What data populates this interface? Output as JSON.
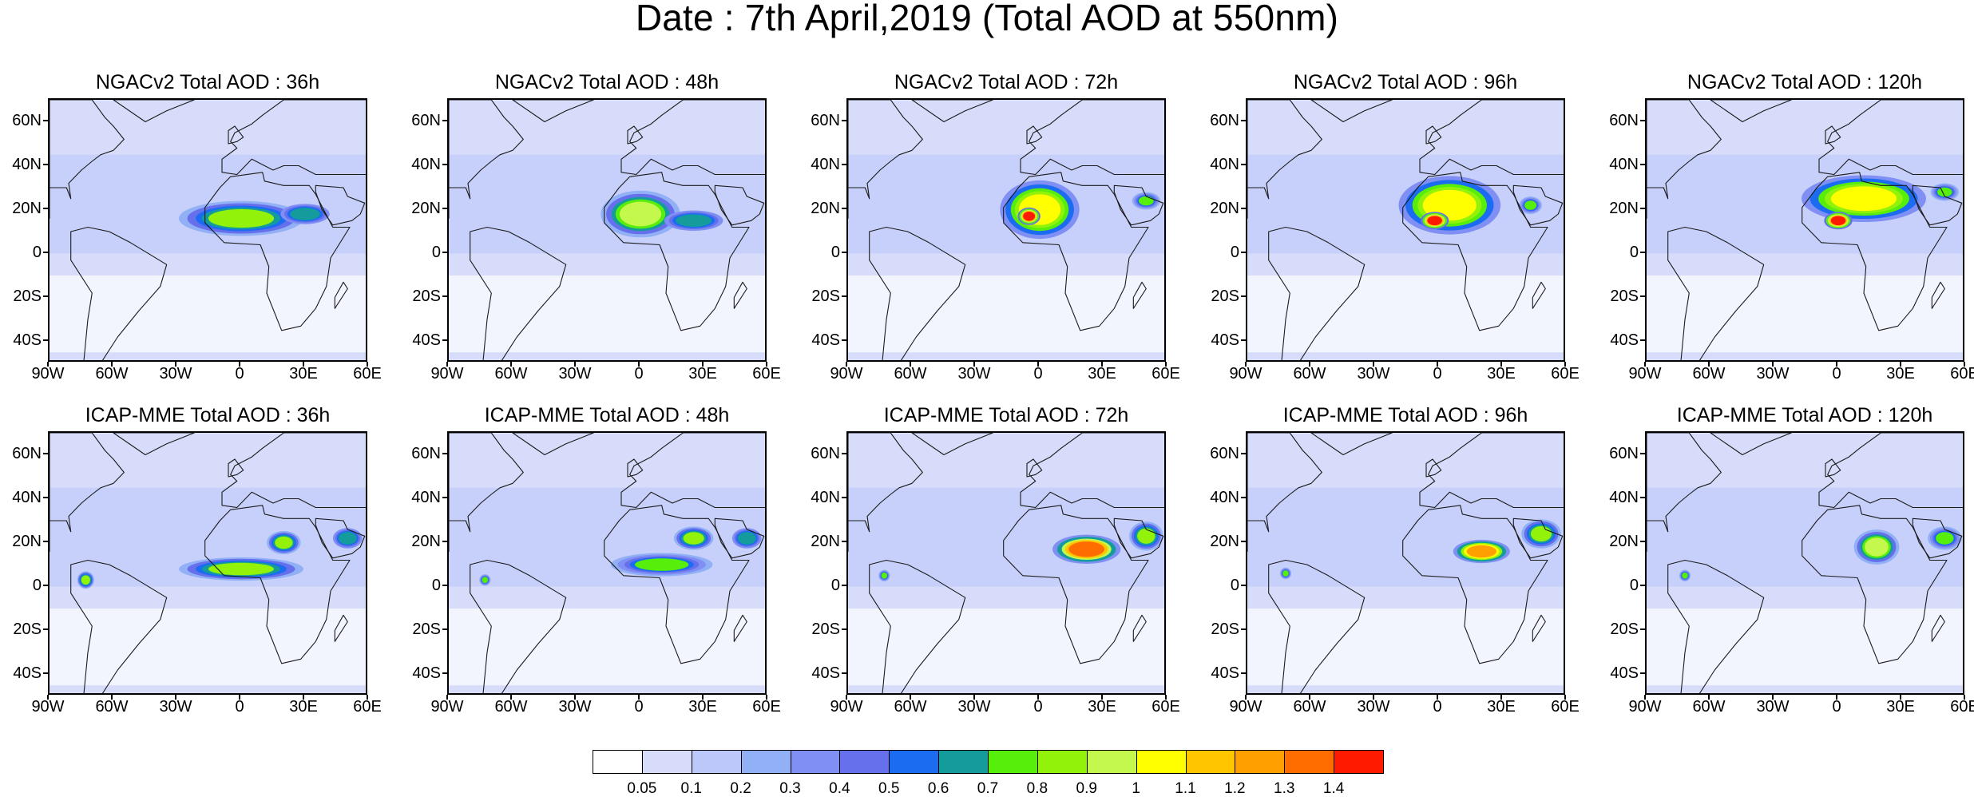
{
  "title": "Date : 7th April,2019 (Total AOD at 550nm)",
  "panels": [
    {
      "title": "NGACv2 Total AOD : 36h",
      "model": "NGACv2",
      "lead": "36h",
      "plumes": [
        {
          "lon": 0,
          "lat": 16,
          "rx": 22,
          "ry": 6,
          "level": 0.8
        },
        {
          "lon": 30,
          "lat": 18,
          "rx": 10,
          "ry": 4,
          "level": 0.6
        }
      ]
    },
    {
      "title": "NGACv2 Total AOD : 48h",
      "model": "NGACv2",
      "lead": "48h",
      "plumes": [
        {
          "lon": 0,
          "lat": 18,
          "rx": 14,
          "ry": 8,
          "level": 0.9
        },
        {
          "lon": 25,
          "lat": 15,
          "rx": 12,
          "ry": 4,
          "level": 0.6
        }
      ]
    },
    {
      "title": "NGACv2 Total AOD : 72h",
      "model": "NGACv2",
      "lead": "72h",
      "plumes": [
        {
          "lon": 0,
          "lat": 20,
          "rx": 14,
          "ry": 10,
          "level": 1.0
        },
        {
          "lon": -5,
          "lat": 17,
          "rx": 4,
          "ry": 3,
          "level": 1.4
        },
        {
          "lon": 50,
          "lat": 24,
          "rx": 5,
          "ry": 3,
          "level": 0.7
        }
      ]
    },
    {
      "title": "NGACv2 Total AOD : 96h",
      "model": "NGACv2",
      "lead": "96h",
      "plumes": [
        {
          "lon": 5,
          "lat": 22,
          "rx": 18,
          "ry": 10,
          "level": 1.0
        },
        {
          "lon": -2,
          "lat": 15,
          "rx": 5,
          "ry": 3,
          "level": 1.4
        },
        {
          "lon": 43,
          "lat": 22,
          "rx": 4,
          "ry": 3,
          "level": 0.7
        }
      ]
    },
    {
      "title": "NGACv2 Total AOD : 120h",
      "model": "NGACv2",
      "lead": "120h",
      "plumes": [
        {
          "lon": 12,
          "lat": 25,
          "rx": 22,
          "ry": 8,
          "level": 1.0
        },
        {
          "lon": 0,
          "lat": 15,
          "rx": 5,
          "ry": 3,
          "level": 1.4
        },
        {
          "lon": 50,
          "lat": 28,
          "rx": 5,
          "ry": 3,
          "level": 0.7
        }
      ]
    },
    {
      "title": "ICAP-MME Total AOD : 36h",
      "model": "ICAP-MME",
      "lead": "36h",
      "plumes": [
        {
          "lon": 0,
          "lat": 8,
          "rx": 22,
          "ry": 4,
          "level": 0.8
        },
        {
          "lon": 20,
          "lat": 20,
          "rx": 6,
          "ry": 4,
          "level": 0.8
        },
        {
          "lon": -73,
          "lat": 3,
          "rx": 3,
          "ry": 3,
          "level": 0.8
        },
        {
          "lon": 50,
          "lat": 22,
          "rx": 6,
          "ry": 4,
          "level": 0.6
        }
      ]
    },
    {
      "title": "ICAP-MME Total AOD : 48h",
      "model": "ICAP-MME",
      "lead": "48h",
      "plumes": [
        {
          "lon": 10,
          "lat": 10,
          "rx": 18,
          "ry": 4,
          "level": 0.7
        },
        {
          "lon": 25,
          "lat": 22,
          "rx": 7,
          "ry": 4,
          "level": 0.8
        },
        {
          "lon": -73,
          "lat": 3,
          "rx": 2,
          "ry": 2,
          "level": 0.7
        },
        {
          "lon": 50,
          "lat": 22,
          "rx": 6,
          "ry": 4,
          "level": 0.6
        }
      ]
    },
    {
      "title": "ICAP-MME Total AOD : 72h",
      "model": "ICAP-MME",
      "lead": "72h",
      "plumes": [
        {
          "lon": 22,
          "lat": 17,
          "rx": 12,
          "ry": 5,
          "level": 1.3
        },
        {
          "lon": 50,
          "lat": 23,
          "rx": 6,
          "ry": 5,
          "level": 0.8
        },
        {
          "lon": -73,
          "lat": 5,
          "rx": 2,
          "ry": 2,
          "level": 0.7
        }
      ]
    },
    {
      "title": "ICAP-MME Total AOD : 96h",
      "model": "ICAP-MME",
      "lead": "96h",
      "plumes": [
        {
          "lon": 20,
          "lat": 16,
          "rx": 10,
          "ry": 4,
          "level": 1.2
        },
        {
          "lon": 48,
          "lat": 24,
          "rx": 7,
          "ry": 5,
          "level": 0.8
        },
        {
          "lon": -72,
          "lat": 6,
          "rx": 2,
          "ry": 2,
          "level": 0.7
        }
      ]
    },
    {
      "title": "ICAP-MME Total AOD : 120h",
      "model": "ICAP-MME",
      "lead": "120h",
      "plumes": [
        {
          "lon": 18,
          "lat": 18,
          "rx": 8,
          "ry": 6,
          "level": 0.9
        },
        {
          "lon": 50,
          "lat": 22,
          "rx": 6,
          "ry": 4,
          "level": 0.7
        },
        {
          "lon": -72,
          "lat": 5,
          "rx": 2,
          "ry": 2,
          "level": 0.7
        }
      ]
    }
  ],
  "lat_labels": [
    "60N",
    "40N",
    "20N",
    "0",
    "20S",
    "40S"
  ],
  "lat_values": [
    60,
    40,
    20,
    0,
    -20,
    -40
  ],
  "lon_labels": [
    "90W",
    "60W",
    "30W",
    "0",
    "30E",
    "60E"
  ],
  "lon_values": [
    -90,
    -60,
    -30,
    0,
    30,
    60
  ],
  "extent": {
    "lon_min": -90,
    "lon_max": 60,
    "lat_min": -50,
    "lat_max": 70
  },
  "colorbar": {
    "levels": [
      "0.05",
      "0.1",
      "0.2",
      "0.3",
      "0.4",
      "0.5",
      "0.6",
      "0.7",
      "0.8",
      "0.9",
      "1",
      "1.1",
      "1.2",
      "1.3",
      "1.4"
    ],
    "colors": [
      "#ffffff",
      "#d6dcfa",
      "#bcc8fa",
      "#92b0f6",
      "#7f8ff4",
      "#6670ec",
      "#1c6cf2",
      "#149c9c",
      "#57ee0c",
      "#92f20a",
      "#c4f84c",
      "#ffff00",
      "#ffc600",
      "#ffa000",
      "#ff6c00",
      "#ff1a00"
    ]
  }
}
